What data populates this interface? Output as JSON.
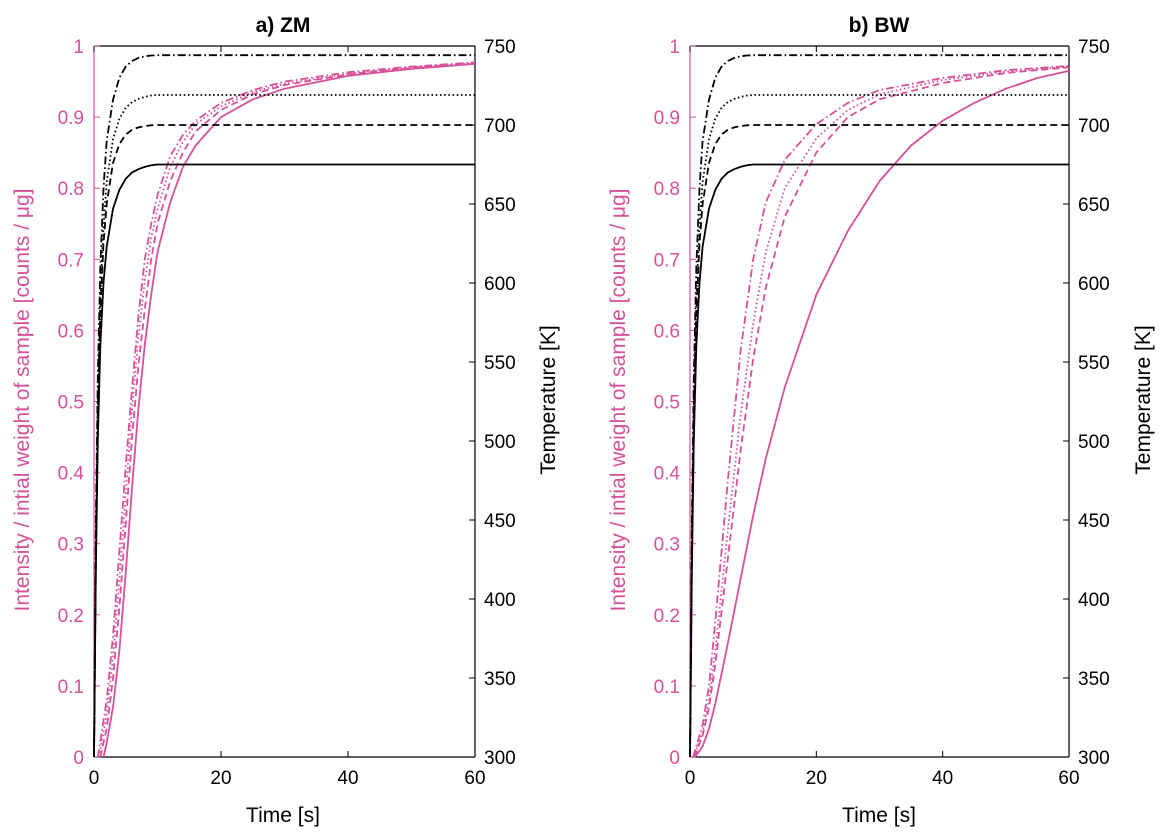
{
  "colors": {
    "intensity": "#d6509a",
    "temperature": "#000000",
    "axis": "#000000",
    "background": "#ffffff"
  },
  "chart_data": [
    {
      "type": "line",
      "title": "a) ZM",
      "xlabel": "Time [s]",
      "ylabel_left": "Intensity / intial weight of sample [counts / μg]",
      "ylabel_right": "Temperature [K]",
      "xlim": [
        0,
        60
      ],
      "ylim_left": [
        0,
        1
      ],
      "ylim_right": [
        300,
        750
      ],
      "xticks": [
        "0",
        "20",
        "40",
        "60"
      ],
      "yticks_left": [
        "0",
        "0.1",
        "0.2",
        "0.3",
        "0.4",
        "0.5",
        "0.6",
        "0.7",
        "0.8",
        "0.9",
        "1"
      ],
      "yticks_right": [
        "300",
        "350",
        "400",
        "450",
        "500",
        "550",
        "600",
        "650",
        "700",
        "750"
      ],
      "grid": false,
      "intensity_series": [
        {
          "style": "solid",
          "x": [
            1.5,
            2,
            3,
            4,
            5,
            6,
            7,
            8,
            9,
            10,
            12,
            14,
            16,
            20,
            25,
            30,
            40,
            50,
            60
          ],
          "y": [
            0,
            0.02,
            0.07,
            0.15,
            0.26,
            0.38,
            0.49,
            0.58,
            0.65,
            0.71,
            0.78,
            0.83,
            0.86,
            0.9,
            0.925,
            0.94,
            0.958,
            0.968,
            0.975
          ]
        },
        {
          "style": "dashed",
          "x": [
            1,
            2,
            3,
            4,
            5,
            6,
            7,
            8,
            9,
            10,
            12,
            14,
            16,
            20,
            25,
            30,
            40,
            50,
            60
          ],
          "y": [
            0,
            0.04,
            0.11,
            0.21,
            0.33,
            0.45,
            0.55,
            0.63,
            0.7,
            0.75,
            0.81,
            0.85,
            0.88,
            0.91,
            0.932,
            0.945,
            0.96,
            0.969,
            0.975
          ]
        },
        {
          "style": "dotted",
          "x": [
            0.8,
            2,
            3,
            4,
            5,
            6,
            7,
            8,
            9,
            10,
            12,
            14,
            16,
            20,
            25,
            30,
            40,
            50,
            60
          ],
          "y": [
            0,
            0.06,
            0.14,
            0.25,
            0.37,
            0.49,
            0.59,
            0.67,
            0.73,
            0.77,
            0.83,
            0.865,
            0.89,
            0.915,
            0.935,
            0.947,
            0.961,
            0.97,
            0.976
          ]
        },
        {
          "style": "dashdot",
          "x": [
            0.6,
            2,
            3,
            4,
            5,
            6,
            7,
            8,
            9,
            10,
            12,
            14,
            16,
            20,
            25,
            30,
            40,
            50,
            60
          ],
          "y": [
            0,
            0.08,
            0.17,
            0.29,
            0.41,
            0.52,
            0.62,
            0.7,
            0.75,
            0.79,
            0.845,
            0.875,
            0.895,
            0.92,
            0.938,
            0.95,
            0.963,
            0.971,
            0.977
          ]
        }
      ],
      "temperature_series": [
        {
          "style": "solid",
          "x": [
            0,
            0.3,
            0.6,
            1,
            1.5,
            2,
            3,
            4,
            5,
            6,
            7,
            8,
            9,
            10,
            60
          ],
          "y": [
            300,
            420,
            500,
            560,
            600,
            623,
            647,
            659,
            666,
            670,
            672,
            673.5,
            674.5,
            675,
            675
          ]
        },
        {
          "style": "dashed",
          "x": [
            0,
            0.3,
            0.6,
            1,
            1.5,
            2,
            3,
            4,
            5,
            6,
            7,
            8,
            9,
            10,
            60
          ],
          "y": [
            300,
            430,
            515,
            580,
            625,
            650,
            676,
            688,
            694,
            697,
            698.5,
            699.3,
            699.8,
            700,
            700
          ]
        },
        {
          "style": "dotted",
          "x": [
            0,
            0.3,
            0.6,
            1,
            1.5,
            2,
            3,
            4,
            5,
            6,
            7,
            8,
            9,
            10,
            60
          ],
          "y": [
            300,
            440,
            525,
            590,
            636,
            664,
            691,
            704,
            711,
            714.5,
            716.5,
            717.8,
            718.7,
            719,
            719
          ]
        },
        {
          "style": "dashdot",
          "x": [
            0,
            0.3,
            0.6,
            1,
            1.5,
            2,
            3,
            4,
            5,
            6,
            7,
            8,
            9,
            10,
            60
          ],
          "y": [
            300,
            450,
            540,
            610,
            660,
            690,
            716,
            730,
            737,
            740.5,
            742.5,
            743.5,
            744,
            744.2,
            744.2
          ]
        }
      ]
    },
    {
      "type": "line",
      "title": "b) BW",
      "xlabel": "Time [s]",
      "ylabel_left": "Intensity / intial weight of sample [counts / μg]",
      "ylabel_right": "Temperature [K]",
      "xlim": [
        0,
        60
      ],
      "ylim_left": [
        0,
        1
      ],
      "ylim_right": [
        300,
        750
      ],
      "xticks": [
        "0",
        "20",
        "40",
        "60"
      ],
      "yticks_left": [
        "0",
        "0.1",
        "0.2",
        "0.3",
        "0.4",
        "0.5",
        "0.6",
        "0.7",
        "0.8",
        "0.9",
        "1"
      ],
      "yticks_right": [
        "300",
        "350",
        "400",
        "450",
        "500",
        "550",
        "600",
        "650",
        "700",
        "750"
      ],
      "grid": false,
      "intensity_series": [
        {
          "style": "solid",
          "x": [
            0.8,
            2,
            3,
            4,
            6,
            8,
            10,
            12,
            15,
            20,
            25,
            30,
            35,
            40,
            45,
            50,
            55,
            60
          ],
          "y": [
            0,
            0.015,
            0.04,
            0.075,
            0.16,
            0.25,
            0.34,
            0.42,
            0.52,
            0.65,
            0.74,
            0.81,
            0.86,
            0.895,
            0.92,
            0.94,
            0.955,
            0.965
          ]
        },
        {
          "style": "dashed",
          "x": [
            0.7,
            2,
            3,
            4,
            6,
            8,
            10,
            12,
            15,
            20,
            25,
            30,
            40,
            50,
            60
          ],
          "y": [
            0,
            0.03,
            0.07,
            0.13,
            0.28,
            0.43,
            0.56,
            0.66,
            0.76,
            0.85,
            0.9,
            0.925,
            0.948,
            0.962,
            0.97
          ]
        },
        {
          "style": "dotted",
          "x": [
            0.6,
            2,
            3,
            4,
            6,
            8,
            10,
            12,
            15,
            20,
            25,
            30,
            40,
            50,
            60
          ],
          "y": [
            0,
            0.035,
            0.08,
            0.15,
            0.32,
            0.48,
            0.61,
            0.71,
            0.8,
            0.87,
            0.91,
            0.932,
            0.952,
            0.964,
            0.971
          ]
        },
        {
          "style": "dashdot",
          "x": [
            0.5,
            2,
            3,
            4,
            6,
            8,
            10,
            12,
            15,
            20,
            25,
            30,
            40,
            50,
            60
          ],
          "y": [
            0,
            0.045,
            0.1,
            0.19,
            0.39,
            0.57,
            0.7,
            0.78,
            0.84,
            0.89,
            0.92,
            0.938,
            0.955,
            0.966,
            0.972
          ]
        }
      ],
      "temperature_series": [
        {
          "style": "solid",
          "x": [
            0,
            0.3,
            0.6,
            1,
            1.5,
            2,
            3,
            4,
            5,
            6,
            7,
            8,
            9,
            10,
            60
          ],
          "y": [
            300,
            420,
            500,
            560,
            600,
            623,
            647,
            659,
            666,
            670,
            672,
            673.5,
            674.5,
            675,
            675
          ]
        },
        {
          "style": "dashed",
          "x": [
            0,
            0.3,
            0.6,
            1,
            1.5,
            2,
            3,
            4,
            5,
            6,
            7,
            8,
            9,
            10,
            60
          ],
          "y": [
            300,
            430,
            515,
            580,
            625,
            650,
            676,
            688,
            694,
            697,
            698.5,
            699.3,
            699.8,
            700,
            700
          ]
        },
        {
          "style": "dotted",
          "x": [
            0,
            0.3,
            0.6,
            1,
            1.5,
            2,
            3,
            4,
            5,
            6,
            7,
            8,
            9,
            10,
            60
          ],
          "y": [
            300,
            440,
            525,
            590,
            636,
            664,
            691,
            704,
            711,
            714.5,
            716.5,
            717.8,
            718.7,
            719,
            719
          ]
        },
        {
          "style": "dashdot",
          "x": [
            0,
            0.3,
            0.6,
            1,
            1.5,
            2,
            3,
            4,
            5,
            6,
            7,
            8,
            9,
            10,
            60
          ],
          "y": [
            300,
            450,
            540,
            610,
            660,
            690,
            716,
            730,
            737,
            740.5,
            742.5,
            743.5,
            744,
            744.2,
            744.2
          ]
        }
      ]
    }
  ]
}
